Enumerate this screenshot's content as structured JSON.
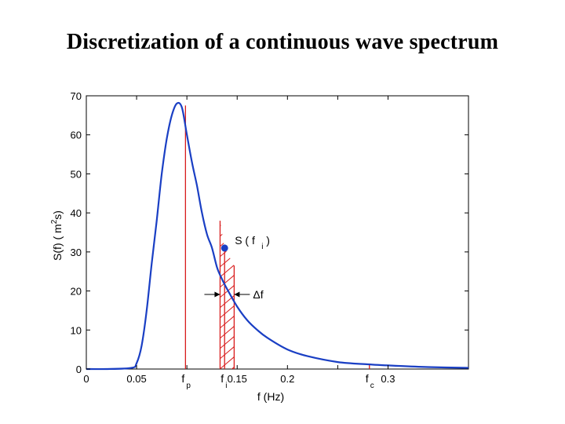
{
  "title": "Discretization of a continuous wave spectrum",
  "chart_data": {
    "type": "line",
    "title": "Discretization of a continuous wave spectrum",
    "xlabel": "f (Hz)",
    "ylabel": "S(f) ( m2s)",
    "ylabel_parts": {
      "pre": "S(f) ( m",
      "sup": "2",
      "post": "s)"
    },
    "xlim": [
      0,
      0.38
    ],
    "ylim": [
      0,
      70
    ],
    "x_ticks": [
      0,
      0.05,
      0.1,
      0.15,
      0.2,
      0.25,
      0.3
    ],
    "x_tick_labels": [
      "0",
      "0.05",
      "",
      "0.15",
      "0.2",
      "",
      "0.3"
    ],
    "y_ticks": [
      0,
      10,
      20,
      30,
      40,
      50,
      60,
      70
    ],
    "y_tick_labels": [
      "0",
      "10",
      "20",
      "30",
      "40",
      "50",
      "60",
      "70"
    ],
    "grid": false,
    "series_color": "#1a3fc4",
    "marker_color": "#1a3fc4",
    "annotation_color": "#d81c1c",
    "series": [
      {
        "x": [
          0,
          0.02,
          0.045,
          0.05,
          0.055,
          0.06,
          0.065,
          0.07,
          0.075,
          0.08,
          0.085,
          0.09,
          0.095,
          0.1,
          0.105,
          0.11,
          0.115,
          0.12,
          0.125,
          0.13,
          0.135,
          0.14,
          0.15,
          0.16,
          0.17,
          0.18,
          0.2,
          0.22,
          0.25,
          0.28,
          0.31,
          0.34,
          0.38
        ],
        "y": [
          0,
          0,
          0.3,
          1.5,
          6,
          15,
          27,
          38,
          50,
          59,
          65,
          68,
          67,
          60,
          53,
          47,
          40,
          34.5,
          31,
          26,
          23,
          20.5,
          16,
          12.5,
          10,
          8,
          5,
          3.3,
          1.8,
          1.2,
          0.8,
          0.5,
          0.3
        ]
      }
    ],
    "lines": [
      {
        "x": 0.0986,
        "y": 67.5,
        "label": "f",
        "sub": "p"
      },
      {
        "x": 0.133,
        "y": 38,
        "label": "",
        "sub": ""
      },
      {
        "x": 0.1375,
        "y": 31,
        "label": "f",
        "sub": "i"
      },
      {
        "x": 0.147,
        "y": 26.5,
        "label": "",
        "sub": ""
      },
      {
        "x": 0.2815,
        "y": 1.3,
        "label": "f",
        "sub": "c"
      }
    ],
    "hatch_band": {
      "x_min": 0.133,
      "x_max": 0.147
    },
    "point": {
      "x": 0.1375,
      "y": 31,
      "label": "S ( f",
      "sub": "i",
      "close": " )"
    },
    "delta_label": {
      "text": "Δf",
      "y": 19.5
    }
  }
}
